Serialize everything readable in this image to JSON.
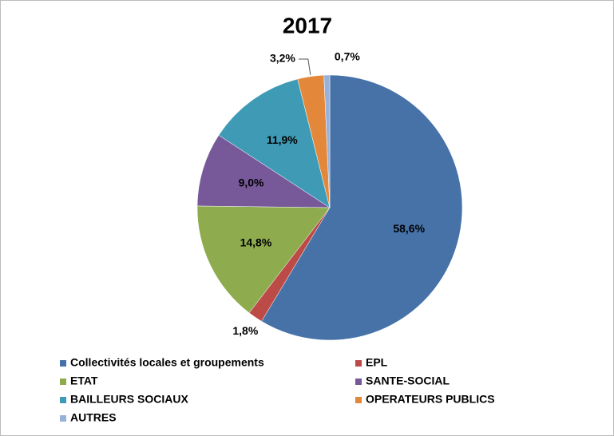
{
  "chart_data": {
    "type": "pie",
    "title": "2017",
    "categories": [
      "Collectivités locales et groupements",
      "EPL",
      "ETAT",
      "SANTE-SOCIAL",
      "BAILLEURS SOCIAUX",
      "OPERATEURS PUBLICS",
      "AUTRES"
    ],
    "values": [
      58.6,
      1.8,
      14.8,
      9.0,
      11.9,
      3.2,
      0.7
    ],
    "value_labels": [
      "58,6%",
      "1,8%",
      "14,8%",
      "9,0%",
      "11,9%",
      "3,2%",
      "0,7%"
    ],
    "colors": [
      "#4672a8",
      "#bc4a47",
      "#8eab4e",
      "#77599a",
      "#3f9bb5",
      "#e3883a",
      "#98b1d9"
    ],
    "legend": "bottom"
  }
}
